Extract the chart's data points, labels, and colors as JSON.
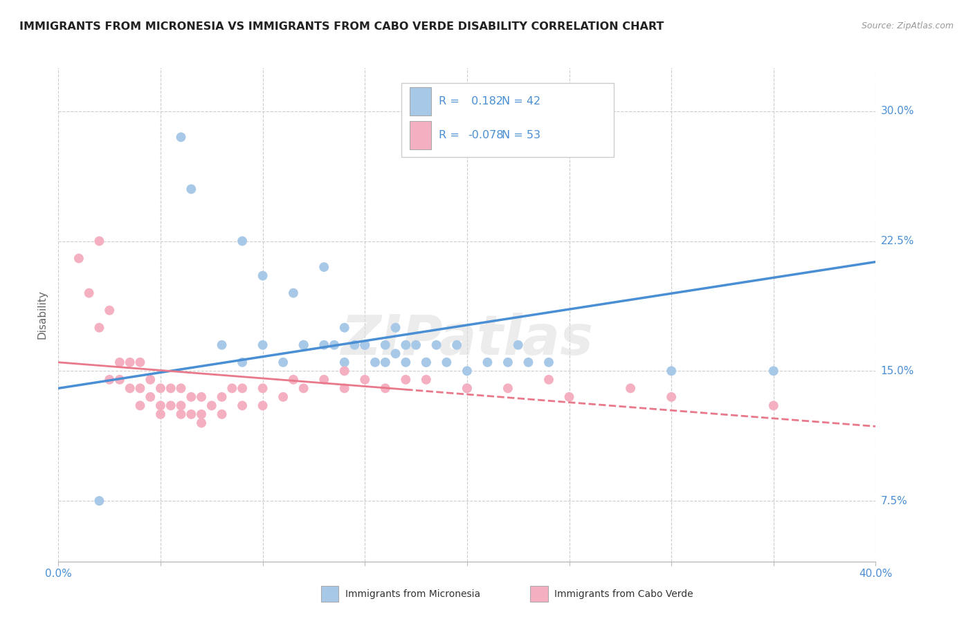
{
  "title": "IMMIGRANTS FROM MICRONESIA VS IMMIGRANTS FROM CABO VERDE DISABILITY CORRELATION CHART",
  "source": "Source: ZipAtlas.com",
  "ylabel": "Disability",
  "xlim": [
    0.0,
    0.4
  ],
  "ylim": [
    0.04,
    0.325
  ],
  "yticks": [
    0.075,
    0.15,
    0.225,
    0.3
  ],
  "ytick_labels": [
    "7.5%",
    "15.0%",
    "22.5%",
    "30.0%"
  ],
  "xtick_pos": [
    0.0,
    0.05,
    0.1,
    0.15,
    0.2,
    0.25,
    0.3,
    0.35,
    0.4
  ],
  "xtick_labels": [
    "0.0%",
    "",
    "",
    "",
    "",
    "",
    "",
    "",
    "40.0%"
  ],
  "blue_R": 0.182,
  "blue_N": 42,
  "pink_R": -0.078,
  "pink_N": 53,
  "blue_fill": "#A8C8E8",
  "pink_fill": "#F4B0C0",
  "blue_line": "#4A8FD4",
  "pink_line": "#E8788A",
  "bg": "#FFFFFF",
  "grid_color": "#CCCCCC",
  "blue_x": [
    0.02,
    0.06,
    0.065,
    0.09,
    0.1,
    0.115,
    0.12,
    0.13,
    0.135,
    0.14,
    0.145,
    0.15,
    0.155,
    0.16,
    0.165,
    0.165,
    0.17,
    0.175,
    0.18,
    0.185,
    0.19,
    0.195,
    0.2,
    0.21,
    0.22,
    0.225,
    0.23,
    0.24,
    0.3,
    0.35,
    0.08,
    0.09,
    0.1,
    0.11,
    0.12,
    0.13,
    0.14,
    0.15,
    0.16,
    0.17,
    0.18,
    0.2
  ],
  "blue_y": [
    0.075,
    0.285,
    0.255,
    0.225,
    0.205,
    0.195,
    0.165,
    0.21,
    0.165,
    0.175,
    0.165,
    0.165,
    0.155,
    0.165,
    0.16,
    0.175,
    0.155,
    0.165,
    0.155,
    0.165,
    0.155,
    0.165,
    0.15,
    0.155,
    0.155,
    0.165,
    0.155,
    0.155,
    0.15,
    0.15,
    0.165,
    0.155,
    0.165,
    0.155,
    0.165,
    0.165,
    0.155,
    0.165,
    0.155,
    0.165,
    0.155,
    0.14
  ],
  "pink_x": [
    0.01,
    0.015,
    0.02,
    0.025,
    0.025,
    0.03,
    0.03,
    0.035,
    0.035,
    0.04,
    0.04,
    0.04,
    0.045,
    0.045,
    0.05,
    0.05,
    0.05,
    0.055,
    0.055,
    0.06,
    0.06,
    0.06,
    0.065,
    0.065,
    0.07,
    0.07,
    0.07,
    0.075,
    0.08,
    0.08,
    0.085,
    0.09,
    0.09,
    0.1,
    0.1,
    0.11,
    0.115,
    0.12,
    0.13,
    0.14,
    0.14,
    0.15,
    0.16,
    0.17,
    0.18,
    0.2,
    0.22,
    0.24,
    0.25,
    0.28,
    0.3,
    0.35,
    0.02
  ],
  "pink_y": [
    0.215,
    0.195,
    0.175,
    0.185,
    0.145,
    0.145,
    0.155,
    0.14,
    0.155,
    0.13,
    0.14,
    0.155,
    0.135,
    0.145,
    0.125,
    0.13,
    0.14,
    0.13,
    0.14,
    0.125,
    0.13,
    0.14,
    0.125,
    0.135,
    0.12,
    0.125,
    0.135,
    0.13,
    0.125,
    0.135,
    0.14,
    0.13,
    0.14,
    0.13,
    0.14,
    0.135,
    0.145,
    0.14,
    0.145,
    0.14,
    0.15,
    0.145,
    0.14,
    0.145,
    0.145,
    0.14,
    0.14,
    0.145,
    0.135,
    0.14,
    0.135,
    0.13,
    0.225
  ],
  "watermark_text": "ZIPatlas",
  "title_fontsize": 11.5,
  "tick_fontsize": 11,
  "legend_fontsize": 11.5,
  "source_fontsize": 9,
  "legend_text_color": "#4A8FD4",
  "tick_color": "#4A8FD4"
}
